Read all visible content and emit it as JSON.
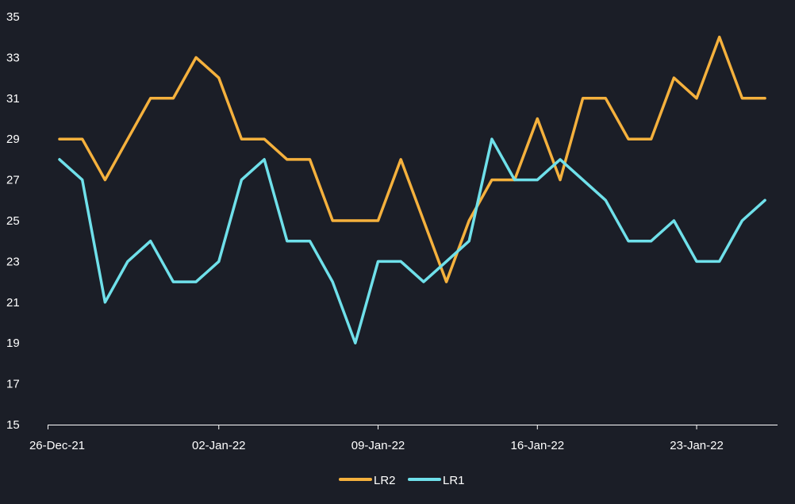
{
  "chart_data": {
    "type": "line",
    "title": "",
    "xlabel": "",
    "ylabel": "",
    "ylim": [
      15,
      35
    ],
    "yticks": [
      "15",
      "17",
      "19",
      "21",
      "23",
      "25",
      "27",
      "29",
      "31",
      "33",
      "35"
    ],
    "xtick_labels": [
      "26-Dec-21",
      "02-Jan-22",
      "09-Jan-22",
      "16-Jan-22",
      "23-Jan-22"
    ],
    "xtick_day_index": [
      0,
      7,
      14,
      21,
      28
    ],
    "x": [
      "26-Dec-21",
      "27-Dec-21",
      "28-Dec-21",
      "29-Dec-21",
      "30-Dec-21",
      "31-Dec-21",
      "01-Jan-22",
      "02-Jan-22",
      "03-Jan-22",
      "04-Jan-22",
      "05-Jan-22",
      "06-Jan-22",
      "07-Jan-22",
      "08-Jan-22",
      "09-Jan-22",
      "10-Jan-22",
      "11-Jan-22",
      "12-Jan-22",
      "13-Jan-22",
      "14-Jan-22",
      "15-Jan-22",
      "16-Jan-22",
      "17-Jan-22",
      "18-Jan-22",
      "19-Jan-22",
      "20-Jan-22",
      "21-Jan-22",
      "22-Jan-22",
      "23-Jan-22",
      "24-Jan-22",
      "25-Jan-22",
      "26-Jan-22"
    ],
    "series": [
      {
        "name": "LR2",
        "color": "#f5b13d",
        "values": [
          29,
          29,
          27,
          29,
          31,
          31,
          33,
          32,
          29,
          29,
          28,
          28,
          25,
          25,
          25,
          28,
          25,
          22,
          25,
          27,
          27,
          30,
          27,
          31,
          31,
          29,
          29,
          32,
          31,
          34,
          31,
          31
        ]
      },
      {
        "name": "LR1",
        "color": "#6fe0ea",
        "values": [
          28,
          27,
          21,
          23,
          24,
          22,
          22,
          23,
          27,
          28,
          24,
          24,
          22,
          19,
          23,
          23,
          22,
          23,
          24,
          29,
          27,
          27,
          28,
          27,
          26,
          24,
          24,
          25,
          23,
          23,
          25,
          26
        ]
      }
    ],
    "legend_position": "bottom-center",
    "grid": false
  }
}
